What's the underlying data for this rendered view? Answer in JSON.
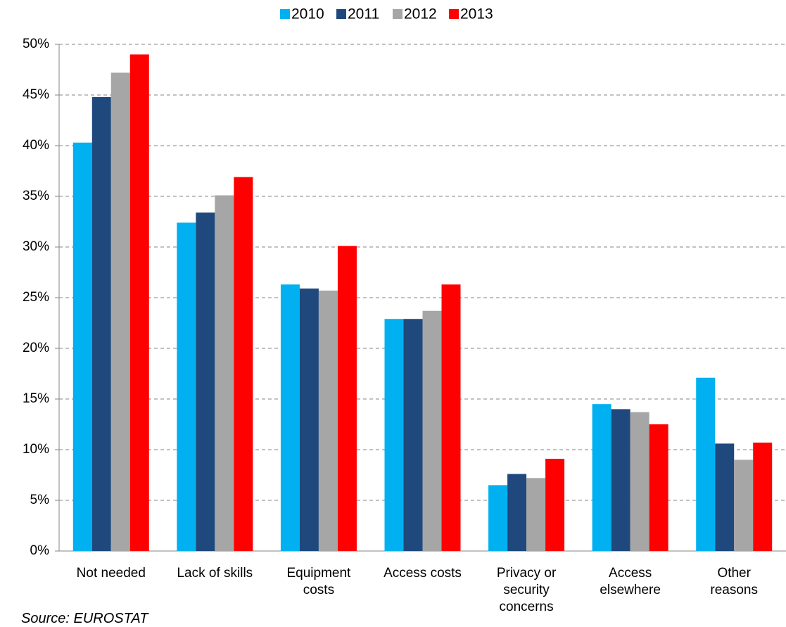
{
  "chart_data": {
    "type": "bar",
    "categories": [
      "Not needed",
      "Lack of skills",
      "Equipment\ncosts",
      "Access costs",
      "Privacy or\nsecurity\nconcerns",
      "Access\nelsewhere",
      "Other\nreasons"
    ],
    "series": [
      {
        "name": "2010",
        "color": "#00b0f0",
        "values": [
          40.3,
          32.4,
          26.3,
          22.9,
          6.5,
          14.5,
          17.1
        ]
      },
      {
        "name": "2011",
        "color": "#1f497d",
        "values": [
          44.8,
          33.4,
          25.9,
          22.9,
          7.6,
          14.0,
          10.6
        ]
      },
      {
        "name": "2012",
        "color": "#a6a6a6",
        "values": [
          47.2,
          35.1,
          25.7,
          23.7,
          7.2,
          13.7,
          9.0
        ]
      },
      {
        "name": "2013",
        "color": "#ff0000",
        "values": [
          49.0,
          36.9,
          30.1,
          26.3,
          9.1,
          12.5,
          10.7
        ]
      }
    ],
    "ylim": [
      0,
      50
    ],
    "yticks": [
      {
        "value": 0,
        "label": "0%"
      },
      {
        "value": 5,
        "label": "5%"
      },
      {
        "value": 10,
        "label": "10%"
      },
      {
        "value": 15,
        "label": "15%"
      },
      {
        "value": 20,
        "label": "20%"
      },
      {
        "value": 25,
        "label": "25%"
      },
      {
        "value": 30,
        "label": "30%"
      },
      {
        "value": 35,
        "label": "35%"
      },
      {
        "value": 40,
        "label": "40%"
      },
      {
        "value": 45,
        "label": "45%"
      },
      {
        "value": 50,
        "label": "50%"
      }
    ],
    "grid": true,
    "legend": "top",
    "source": "Source: EUROSTAT"
  }
}
